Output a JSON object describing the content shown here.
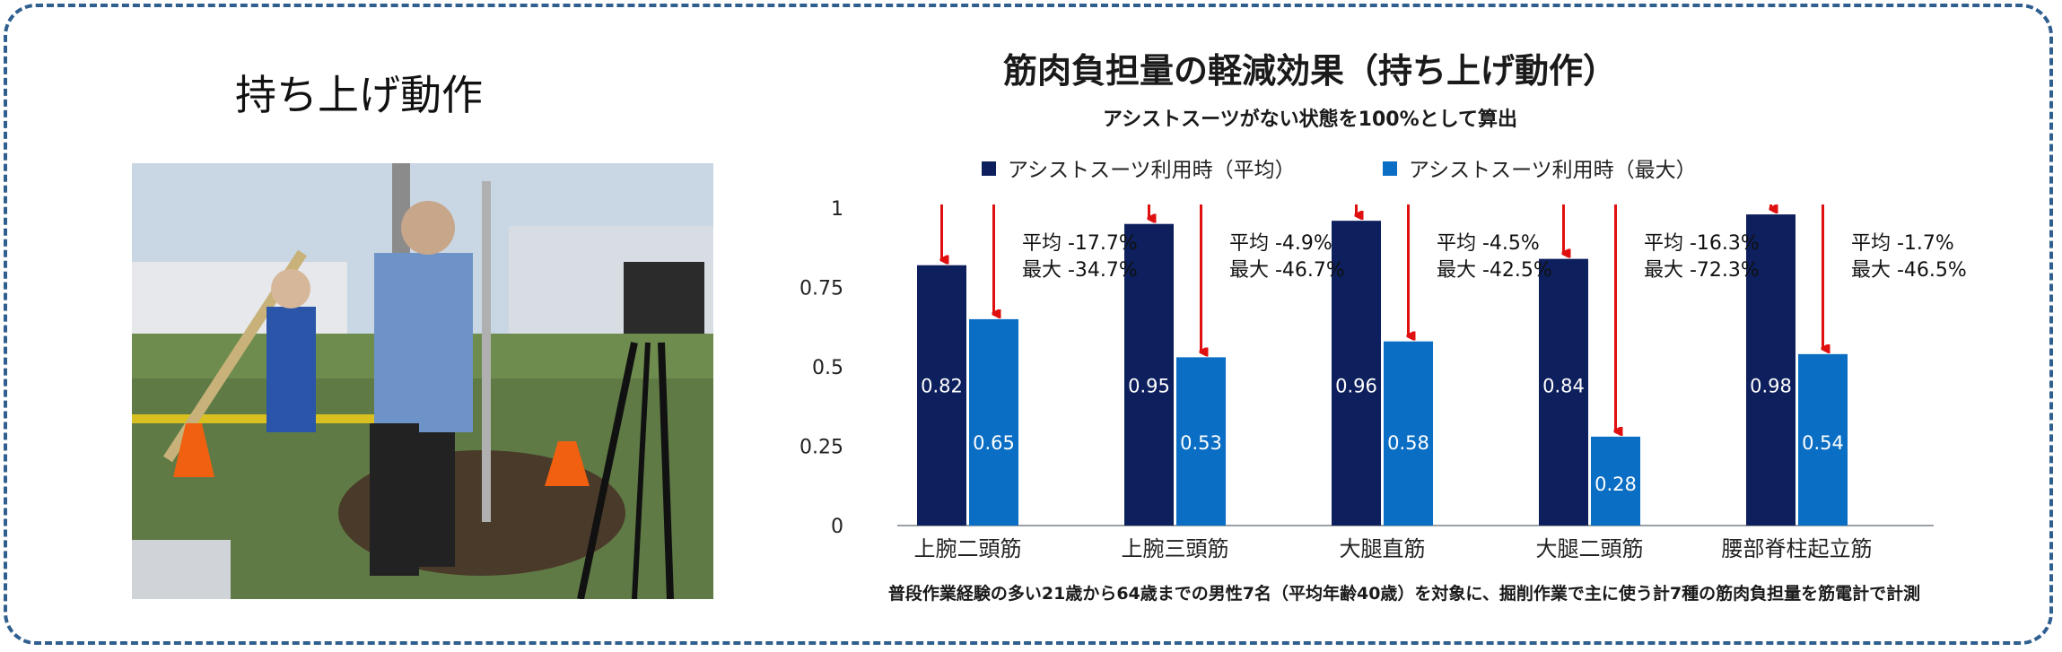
{
  "left_panel": {
    "title": "持ち上げ動作"
  },
  "chart_data": {
    "type": "bar",
    "title": "筋肉負担量の軽減効果（持ち上げ動作）",
    "subtitle": "アシストスーツがない状態を100%として算出",
    "legend_position": "top",
    "ylim": [
      0,
      1
    ],
    "yticks": [
      "0",
      "0.25",
      "0.5",
      "0.75",
      "1"
    ],
    "ytick_values": [
      0,
      0.25,
      0.5,
      0.75,
      1
    ],
    "grid": false,
    "categories": [
      "上腕二頭筋",
      "上腕三頭筋",
      "大腿直筋",
      "大腿二頭筋",
      "腰部脊柱起立筋"
    ],
    "series": [
      {
        "name": "アシストスーツ利用時（平均）",
        "color": "#0d1f5c",
        "values": [
          0.82,
          0.95,
          0.96,
          0.84,
          0.98
        ],
        "labels": [
          "0.82",
          "0.95",
          "0.96",
          "0.84",
          "0.98"
        ]
      },
      {
        "name": "アシストスーツ利用時（最大）",
        "color": "#0a6ec4",
        "values": [
          0.65,
          0.53,
          0.58,
          0.28,
          0.54
        ],
        "labels": [
          "0.65",
          "0.53",
          "0.58",
          "0.28",
          "0.54"
        ]
      }
    ],
    "annotations": [
      {
        "avg": "平均 -17.7%",
        "max": "最大 -34.7%"
      },
      {
        "avg": "平均 -4.9%",
        "max": "最大 -46.7%"
      },
      {
        "avg": "平均 -4.5%",
        "max": "最大 -42.5%"
      },
      {
        "avg": "平均 -16.3%",
        "max": "最大 -72.3%"
      },
      {
        "avg": "平均 -1.7%",
        "max": "最大 -46.5%"
      }
    ],
    "arrow_color": "#e01010",
    "footnote": "普段作業経験の多い21歳から64歳までの男性7名（平均年齢40歳）を対象に、掘削作業で主に使う計7種の筋肉負担量を筋電計で計測"
  }
}
